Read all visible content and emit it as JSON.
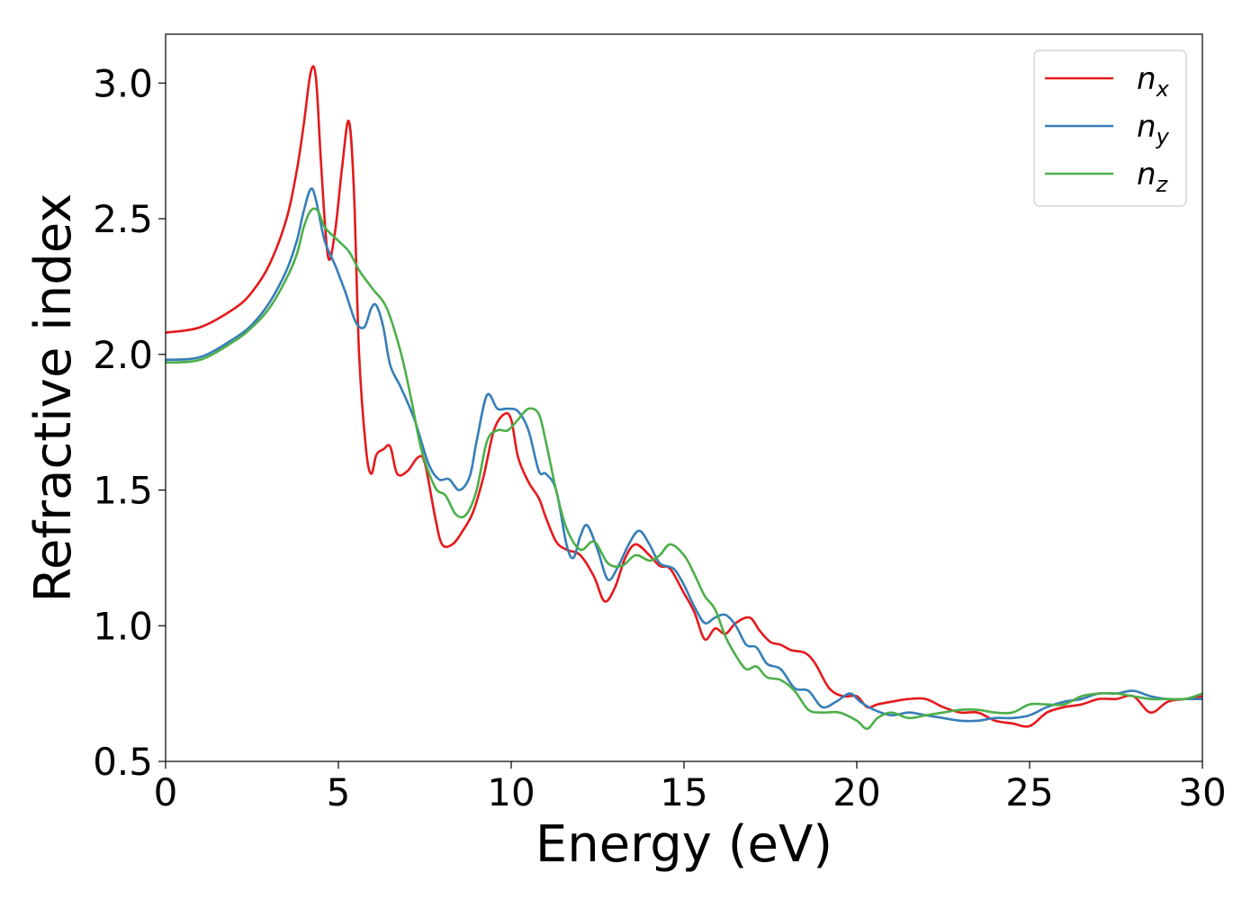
{
  "chart_data": {
    "type": "line",
    "title": "",
    "xlabel": "Energy (eV)",
    "ylabel": "Refractive index",
    "xlim": [
      0,
      30
    ],
    "ylim": [
      0.5,
      3.18
    ],
    "xticks": [
      0,
      5,
      10,
      15,
      20,
      25,
      30
    ],
    "xtick_labels": [
      "0",
      "5",
      "10",
      "15",
      "20",
      "25",
      "30"
    ],
    "yticks": [
      0.5,
      1.0,
      1.5,
      2.0,
      2.5,
      3.0
    ],
    "ytick_labels": [
      "0.5",
      "1.0",
      "1.5",
      "2.0",
      "2.5",
      "3.0"
    ],
    "grid": false,
    "legend_position": "top-right",
    "series": [
      {
        "name": "n",
        "subscript": "x",
        "color": "#e41a1c",
        "x": [
          0,
          1,
          2,
          2.5,
          3,
          3.5,
          3.8,
          4.0,
          4.2,
          4.35,
          4.5,
          4.7,
          4.9,
          5.1,
          5.3,
          5.45,
          5.6,
          5.8,
          5.95,
          6.1,
          6.3,
          6.5,
          6.7,
          7.0,
          7.3,
          7.5,
          7.8,
          8.0,
          8.3,
          8.6,
          8.9,
          9.2,
          9.5,
          9.8,
          10.0,
          10.2,
          10.5,
          10.8,
          11.0,
          11.3,
          11.6,
          12.0,
          12.4,
          12.7,
          13.0,
          13.3,
          13.6,
          14.0,
          14.3,
          14.6,
          15.0,
          15.3,
          15.6,
          15.9,
          16.2,
          16.5,
          16.9,
          17.2,
          17.5,
          17.8,
          18.1,
          18.5,
          18.8,
          19.2,
          19.6,
          20.0,
          20.3,
          20.6,
          21.0,
          21.5,
          22.0,
          22.5,
          23.0,
          23.5,
          24.0,
          24.5,
          25.0,
          25.5,
          26.0,
          26.5,
          27.0,
          27.5,
          28.0,
          28.5,
          29.0,
          29.5,
          30.0
        ],
        "y": [
          2.08,
          2.1,
          2.17,
          2.23,
          2.33,
          2.5,
          2.68,
          2.85,
          3.04,
          3.02,
          2.7,
          2.36,
          2.45,
          2.68,
          2.86,
          2.6,
          2.0,
          1.65,
          1.56,
          1.63,
          1.65,
          1.66,
          1.56,
          1.57,
          1.62,
          1.6,
          1.4,
          1.3,
          1.3,
          1.35,
          1.42,
          1.55,
          1.72,
          1.78,
          1.76,
          1.62,
          1.53,
          1.47,
          1.4,
          1.31,
          1.28,
          1.26,
          1.18,
          1.09,
          1.14,
          1.25,
          1.3,
          1.26,
          1.22,
          1.21,
          1.12,
          1.05,
          0.95,
          0.99,
          0.97,
          1.01,
          1.03,
          0.98,
          0.94,
          0.93,
          0.91,
          0.9,
          0.86,
          0.77,
          0.74,
          0.74,
          0.7,
          0.71,
          0.72,
          0.73,
          0.73,
          0.7,
          0.68,
          0.68,
          0.65,
          0.64,
          0.63,
          0.68,
          0.7,
          0.71,
          0.73,
          0.73,
          0.74,
          0.68,
          0.72,
          0.73,
          0.74
        ]
      },
      {
        "name": "n",
        "subscript": "y",
        "color": "#377eb8",
        "x": [
          0,
          1,
          2,
          2.5,
          3,
          3.5,
          3.8,
          4.0,
          4.2,
          4.35,
          4.6,
          4.9,
          5.2,
          5.5,
          5.75,
          5.95,
          6.1,
          6.3,
          6.5,
          6.8,
          7.2,
          7.6,
          7.9,
          8.2,
          8.5,
          8.8,
          9.0,
          9.3,
          9.6,
          9.9,
          10.2,
          10.5,
          10.8,
          11.0,
          11.3,
          11.6,
          11.8,
          12.0,
          12.2,
          12.5,
          12.8,
          13.1,
          13.4,
          13.7,
          14.0,
          14.3,
          14.7,
          15.0,
          15.3,
          15.6,
          15.9,
          16.2,
          16.5,
          16.8,
          17.1,
          17.4,
          17.8,
          18.2,
          18.6,
          19.0,
          19.4,
          19.8,
          20.1,
          20.5,
          21.0,
          21.5,
          22.0,
          22.5,
          23.0,
          23.5,
          24.0,
          24.5,
          25.0,
          25.5,
          26.0,
          26.5,
          27.0,
          27.5,
          28.0,
          28.5,
          29.0,
          29.5,
          30.0
        ],
        "y": [
          1.98,
          1.99,
          2.06,
          2.11,
          2.19,
          2.31,
          2.42,
          2.53,
          2.61,
          2.57,
          2.42,
          2.33,
          2.23,
          2.12,
          2.1,
          2.17,
          2.18,
          2.1,
          1.96,
          1.88,
          1.76,
          1.6,
          1.54,
          1.54,
          1.5,
          1.55,
          1.68,
          1.85,
          1.8,
          1.8,
          1.79,
          1.72,
          1.57,
          1.56,
          1.5,
          1.3,
          1.25,
          1.33,
          1.37,
          1.28,
          1.17,
          1.22,
          1.3,
          1.35,
          1.3,
          1.23,
          1.21,
          1.15,
          1.07,
          1.01,
          1.03,
          1.04,
          1.0,
          0.93,
          0.92,
          0.86,
          0.84,
          0.77,
          0.76,
          0.7,
          0.72,
          0.75,
          0.72,
          0.69,
          0.67,
          0.68,
          0.67,
          0.66,
          0.65,
          0.65,
          0.66,
          0.66,
          0.67,
          0.7,
          0.72,
          0.73,
          0.75,
          0.75,
          0.76,
          0.74,
          0.73,
          0.73,
          0.73
        ]
      },
      {
        "name": "n",
        "subscript": "z",
        "color": "#4daf4a",
        "x": [
          0,
          1,
          2,
          2.5,
          3,
          3.5,
          3.8,
          4.0,
          4.2,
          4.4,
          4.6,
          4.9,
          5.3,
          5.6,
          6.0,
          6.4,
          6.8,
          7.1,
          7.4,
          7.8,
          8.1,
          8.4,
          8.7,
          9.0,
          9.3,
          9.6,
          9.9,
          10.2,
          10.5,
          10.8,
          11.0,
          11.3,
          11.6,
          12.0,
          12.4,
          12.8,
          13.2,
          13.6,
          14.0,
          14.3,
          14.6,
          15.0,
          15.3,
          15.6,
          15.9,
          16.2,
          16.5,
          16.8,
          17.1,
          17.4,
          17.8,
          18.2,
          18.6,
          19.0,
          19.5,
          20.0,
          20.3,
          20.6,
          21.0,
          21.5,
          22.0,
          22.5,
          23.0,
          23.5,
          24.0,
          24.5,
          25.0,
          25.5,
          26.0,
          26.5,
          27.0,
          27.5,
          28.0,
          28.5,
          29.0,
          29.5,
          30.0
        ],
        "y": [
          1.97,
          1.98,
          2.05,
          2.1,
          2.17,
          2.28,
          2.37,
          2.47,
          2.53,
          2.53,
          2.47,
          2.43,
          2.38,
          2.31,
          2.24,
          2.17,
          2.01,
          1.84,
          1.65,
          1.51,
          1.48,
          1.41,
          1.41,
          1.5,
          1.68,
          1.72,
          1.72,
          1.76,
          1.8,
          1.78,
          1.68,
          1.5,
          1.36,
          1.28,
          1.31,
          1.23,
          1.22,
          1.26,
          1.24,
          1.26,
          1.3,
          1.26,
          1.19,
          1.11,
          1.06,
          0.96,
          0.89,
          0.84,
          0.85,
          0.81,
          0.8,
          0.76,
          0.69,
          0.68,
          0.68,
          0.65,
          0.62,
          0.66,
          0.68,
          0.66,
          0.67,
          0.68,
          0.69,
          0.69,
          0.68,
          0.68,
          0.71,
          0.71,
          0.71,
          0.74,
          0.75,
          0.75,
          0.74,
          0.73,
          0.73,
          0.73,
          0.75
        ]
      }
    ]
  }
}
